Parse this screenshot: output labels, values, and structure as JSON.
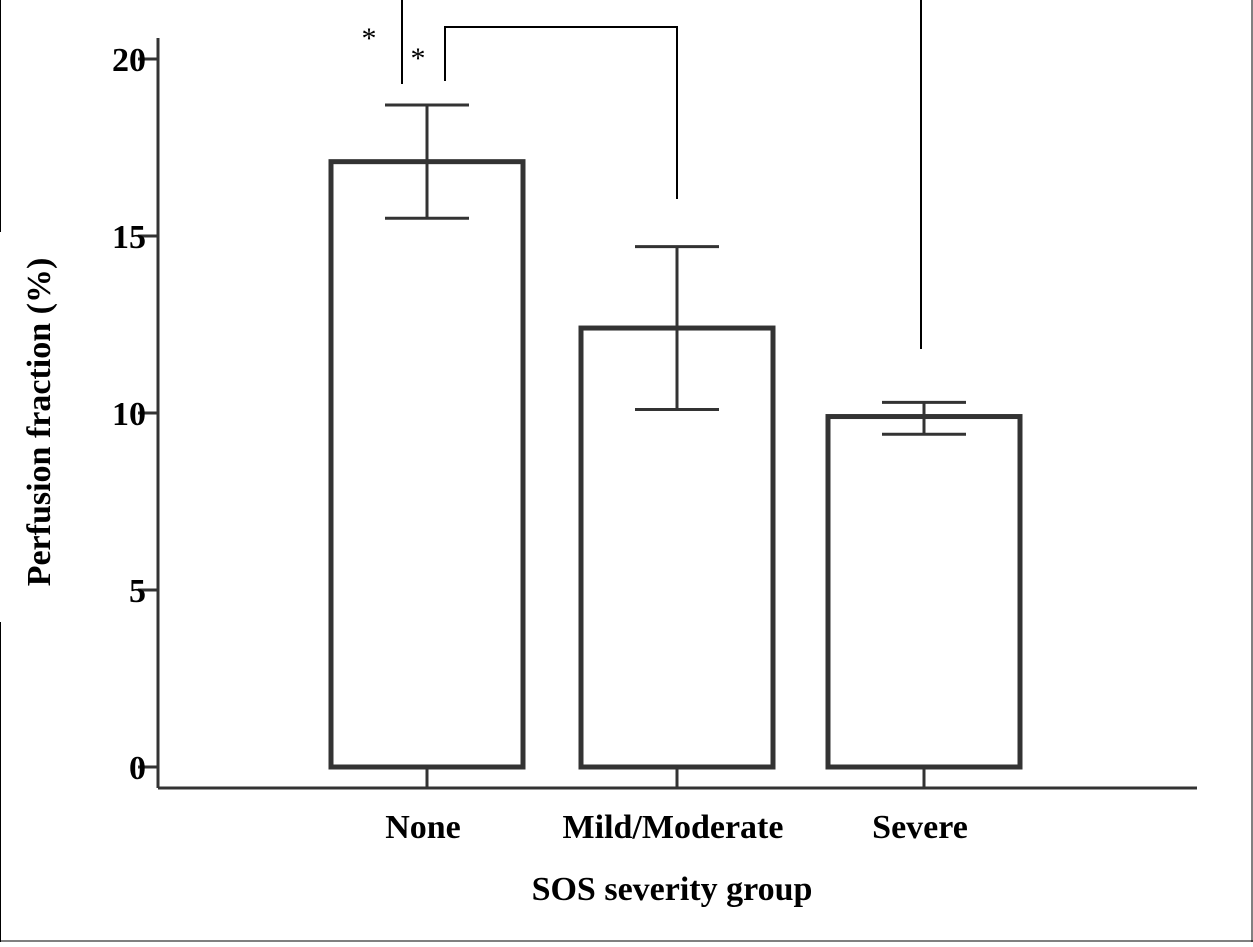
{
  "chart_data": {
    "type": "bar",
    "title": "",
    "xlabel": "SOS severity group",
    "ylabel": "Perfusion fraction (%)",
    "categories": [
      "None",
      "Mild/Moderate",
      "Severe"
    ],
    "values": [
      17.1,
      12.4,
      9.9
    ],
    "error_upper": [
      18.7,
      14.7,
      10.3
    ],
    "error_lower": [
      15.5,
      10.1,
      9.4
    ],
    "ylim": [
      0,
      20
    ],
    "yticks": [
      0,
      5,
      10,
      15,
      20
    ],
    "ytick_labels": [
      "0",
      "5",
      "10",
      "15",
      "20"
    ],
    "grid": false,
    "legend": "none",
    "significance": [
      {
        "from": "None",
        "to": "Severe",
        "label": "*"
      },
      {
        "from": "None",
        "to": "Mild/Moderate",
        "label": "*"
      }
    ],
    "colors": {
      "bar_fill": "#ffffff",
      "bar_stroke": "#333333",
      "axis": "#333333",
      "text": "#000000"
    }
  }
}
